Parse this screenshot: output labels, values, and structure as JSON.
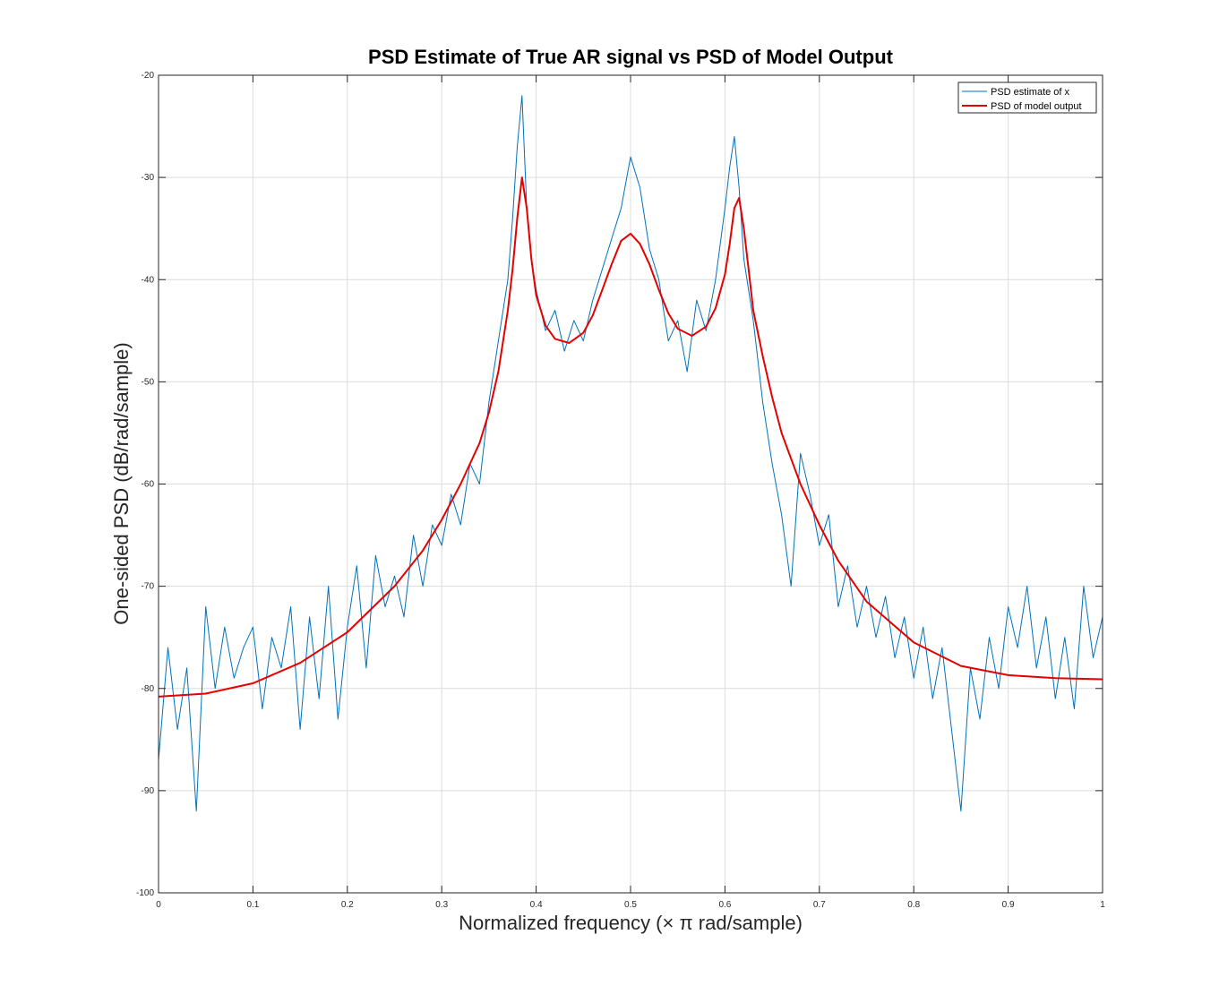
{
  "chart_data": {
    "type": "line",
    "title": "PSD Estimate of True AR signal vs PSD of Model Output",
    "xlabel": "Normalized frequency (× π rad/sample)",
    "ylabel": "One-sided PSD (dB/rad/sample)",
    "xlim": [
      0,
      1
    ],
    "ylim": [
      -100,
      -20
    ],
    "xticks": [
      "0",
      "0.1",
      "0.2",
      "0.3",
      "0.4",
      "0.5",
      "0.6",
      "0.7",
      "0.8",
      "0.9",
      "1"
    ],
    "yticks": [
      "-100",
      "-90",
      "-80",
      "-70",
      "-60",
      "-50",
      "-40",
      "-30",
      "-20"
    ],
    "grid": true,
    "legend_position": "top-right",
    "series": [
      {
        "name": "PSD estimate of x",
        "color": "#0072BD",
        "x": [
          0,
          0.01,
          0.02,
          0.03,
          0.04,
          0.05,
          0.06,
          0.07,
          0.08,
          0.09,
          0.1,
          0.11,
          0.12,
          0.13,
          0.14,
          0.15,
          0.16,
          0.17,
          0.18,
          0.19,
          0.2,
          0.21,
          0.22,
          0.23,
          0.24,
          0.25,
          0.26,
          0.27,
          0.28,
          0.29,
          0.3,
          0.31,
          0.32,
          0.33,
          0.34,
          0.35,
          0.36,
          0.37,
          0.375,
          0.38,
          0.385,
          0.39,
          0.395,
          0.4,
          0.41,
          0.42,
          0.43,
          0.44,
          0.45,
          0.46,
          0.47,
          0.48,
          0.49,
          0.5,
          0.51,
          0.52,
          0.53,
          0.54,
          0.55,
          0.56,
          0.57,
          0.58,
          0.59,
          0.6,
          0.605,
          0.61,
          0.615,
          0.62,
          0.63,
          0.64,
          0.65,
          0.66,
          0.67,
          0.68,
          0.69,
          0.7,
          0.71,
          0.72,
          0.73,
          0.74,
          0.75,
          0.76,
          0.77,
          0.78,
          0.79,
          0.8,
          0.81,
          0.82,
          0.83,
          0.84,
          0.85,
          0.86,
          0.87,
          0.88,
          0.89,
          0.9,
          0.91,
          0.92,
          0.93,
          0.94,
          0.95,
          0.96,
          0.97,
          0.98,
          0.99,
          1
        ],
        "values": [
          -87,
          -76,
          -84,
          -78,
          -92,
          -72,
          -80,
          -74,
          -79,
          -76,
          -74,
          -82,
          -75,
          -78,
          -72,
          -84,
          -73,
          -81,
          -70,
          -83,
          -74,
          -68,
          -78,
          -67,
          -72,
          -69,
          -73,
          -65,
          -70,
          -64,
          -66,
          -61,
          -64,
          -58,
          -60,
          -52,
          -46,
          -40,
          -34,
          -27,
          -22,
          -33,
          -38,
          -41,
          -45,
          -43,
          -47,
          -44,
          -46,
          -42,
          -39,
          -36,
          -33,
          -28,
          -31,
          -37,
          -40,
          -46,
          -44,
          -49,
          -42,
          -45,
          -40,
          -33,
          -29,
          -26,
          -31,
          -38,
          -44,
          -52,
          -58,
          -63,
          -70,
          -57,
          -61,
          -66,
          -63,
          -72,
          -68,
          -74,
          -70,
          -75,
          -71,
          -77,
          -73,
          -79,
          -74,
          -81,
          -76,
          -84,
          -92,
          -78,
          -83,
          -75,
          -80,
          -72,
          -76,
          -70,
          -78,
          -73,
          -81,
          -75,
          -82,
          -70,
          -77,
          -73
        ]
      },
      {
        "name": "PSD of model output",
        "color": "#E60000",
        "x": [
          0,
          0.05,
          0.1,
          0.15,
          0.2,
          0.25,
          0.28,
          0.3,
          0.32,
          0.34,
          0.35,
          0.36,
          0.37,
          0.375,
          0.38,
          0.385,
          0.39,
          0.395,
          0.4,
          0.41,
          0.42,
          0.435,
          0.45,
          0.46,
          0.47,
          0.48,
          0.49,
          0.5,
          0.51,
          0.52,
          0.53,
          0.54,
          0.55,
          0.565,
          0.58,
          0.59,
          0.6,
          0.605,
          0.61,
          0.615,
          0.62,
          0.625,
          0.63,
          0.64,
          0.65,
          0.66,
          0.68,
          0.7,
          0.72,
          0.75,
          0.8,
          0.85,
          0.9,
          0.95,
          1
        ],
        "values": [
          -80.8,
          -80.5,
          -79.5,
          -77.5,
          -74.5,
          -70,
          -66.5,
          -63.5,
          -60,
          -56,
          -53,
          -49,
          -43,
          -39,
          -34,
          -30,
          -33,
          -38,
          -41.5,
          -44.5,
          -45.8,
          -46.2,
          -45.2,
          -43.5,
          -41,
          -38.5,
          -36.2,
          -35.5,
          -36.5,
          -38.5,
          -41,
          -43.3,
          -44.8,
          -45.5,
          -44.6,
          -42.8,
          -39.5,
          -36.5,
          -33,
          -32,
          -35,
          -39,
          -43,
          -47.5,
          -51.5,
          -55,
          -60,
          -64,
          -67.5,
          -71.5,
          -75.5,
          -77.8,
          -78.7,
          -79,
          -79.1
        ]
      }
    ]
  }
}
